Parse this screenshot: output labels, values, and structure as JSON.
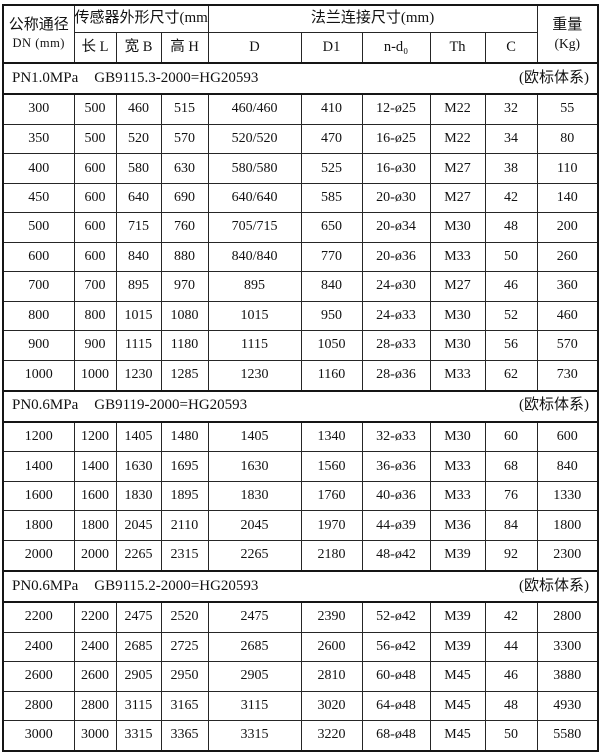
{
  "colors": {
    "border": "#151515",
    "background": "#ffffff",
    "text": "#111111"
  },
  "table": {
    "header": {
      "col_dn": "公称通径",
      "col_dn_sub": "DN (mm)",
      "group_sensor": "传感器外形尺寸(mm)",
      "group_flange": "法兰连接尺寸(mm)",
      "col_weight": "重量",
      "col_weight_sub": "(Kg)",
      "sub_columns": [
        "长 L",
        "宽 B",
        "高 H",
        "D",
        "D1",
        "n-d₀",
        "Th",
        "C"
      ]
    },
    "sections": [
      {
        "pressure": "PN1.0MPa",
        "standard": "GB9115.3-2000=HG20593",
        "note": "(欧标体系)",
        "rows": [
          [
            "300",
            "500",
            "460",
            "515",
            "460/460",
            "410",
            "12-ø25",
            "M22",
            "32",
            "55"
          ],
          [
            "350",
            "500",
            "520",
            "570",
            "520/520",
            "470",
            "16-ø25",
            "M22",
            "34",
            "80"
          ],
          [
            "400",
            "600",
            "580",
            "630",
            "580/580",
            "525",
            "16-ø30",
            "M27",
            "38",
            "110"
          ],
          [
            "450",
            "600",
            "640",
            "690",
            "640/640",
            "585",
            "20-ø30",
            "M27",
            "42",
            "140"
          ],
          [
            "500",
            "600",
            "715",
            "760",
            "705/715",
            "650",
            "20-ø34",
            "M30",
            "48",
            "200"
          ],
          [
            "600",
            "600",
            "840",
            "880",
            "840/840",
            "770",
            "20-ø36",
            "M33",
            "50",
            "260"
          ],
          [
            "700",
            "700",
            "895",
            "970",
            "895",
            "840",
            "24-ø30",
            "M27",
            "46",
            "360"
          ],
          [
            "800",
            "800",
            "1015",
            "1080",
            "1015",
            "950",
            "24-ø33",
            "M30",
            "52",
            "460"
          ],
          [
            "900",
            "900",
            "1115",
            "1180",
            "1115",
            "1050",
            "28-ø33",
            "M30",
            "56",
            "570"
          ],
          [
            "1000",
            "1000",
            "1230",
            "1285",
            "1230",
            "1160",
            "28-ø36",
            "M33",
            "62",
            "730"
          ]
        ]
      },
      {
        "pressure": "PN0.6MPa",
        "standard": "GB9119-2000=HG20593",
        "note": "(欧标体系)",
        "rows": [
          [
            "1200",
            "1200",
            "1405",
            "1480",
            "1405",
            "1340",
            "32-ø33",
            "M30",
            "60",
            "600"
          ],
          [
            "1400",
            "1400",
            "1630",
            "1695",
            "1630",
            "1560",
            "36-ø36",
            "M33",
            "68",
            "840"
          ],
          [
            "1600",
            "1600",
            "1830",
            "1895",
            "1830",
            "1760",
            "40-ø36",
            "M33",
            "76",
            "1330"
          ],
          [
            "1800",
            "1800",
            "2045",
            "2110",
            "2045",
            "1970",
            "44-ø39",
            "M36",
            "84",
            "1800"
          ],
          [
            "2000",
            "2000",
            "2265",
            "2315",
            "2265",
            "2180",
            "48-ø42",
            "M39",
            "92",
            "2300"
          ]
        ]
      },
      {
        "pressure": "PN0.6MPa",
        "standard": "GB9115.2-2000=HG20593",
        "note": "(欧标体系)",
        "rows": [
          [
            "2200",
            "2200",
            "2475",
            "2520",
            "2475",
            "2390",
            "52-ø42",
            "M39",
            "42",
            "2800"
          ],
          [
            "2400",
            "2400",
            "2685",
            "2725",
            "2685",
            "2600",
            "56-ø42",
            "M39",
            "44",
            "3300"
          ],
          [
            "2600",
            "2600",
            "2905",
            "2950",
            "2905",
            "2810",
            "60-ø48",
            "M45",
            "46",
            "3880"
          ],
          [
            "2800",
            "2800",
            "3115",
            "3165",
            "3115",
            "3020",
            "64-ø48",
            "M45",
            "48",
            "4930"
          ],
          [
            "3000",
            "3000",
            "3315",
            "3365",
            "3315",
            "3220",
            "68-ø48",
            "M45",
            "50",
            "5580"
          ]
        ]
      }
    ]
  }
}
